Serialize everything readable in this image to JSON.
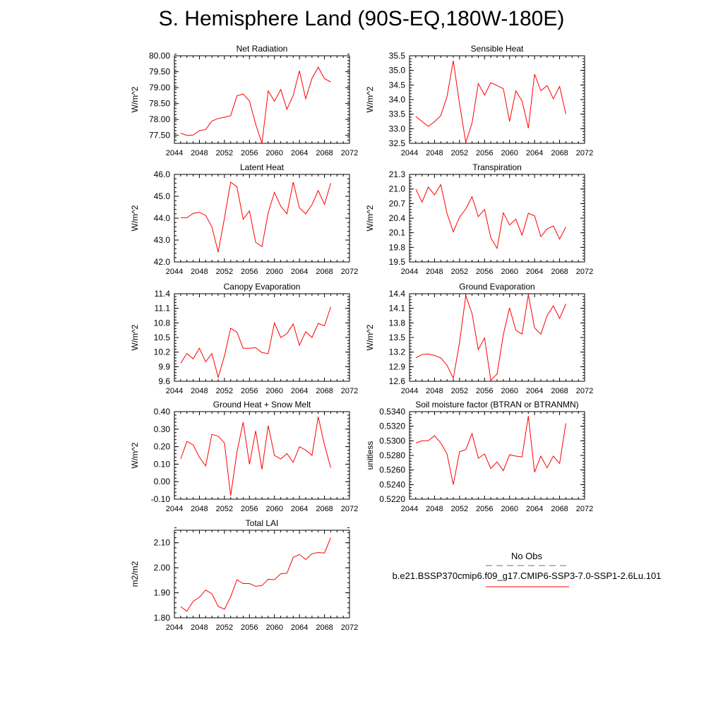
{
  "page": {
    "title": "S. Hemisphere Land (90S-EQ,180W-180E)"
  },
  "legend": {
    "obs_label": "No Obs",
    "case_label": "b.e21.BSSP370cmip6.f09_g17.CMIP6-SSP3-7.0-SSP1-2.6Lu.101",
    "obs_color": "#6b6bb0",
    "case_color": "#ff0000"
  },
  "chart_data": [
    {
      "type": "line",
      "title": "Net Radiation",
      "ylabel": "W/m^2",
      "xlim": [
        2044,
        2072
      ],
      "xticks": [
        "2044",
        "2048",
        "2052",
        "2056",
        "2060",
        "2064",
        "2068",
        "2072"
      ],
      "ylim": [
        77.25,
        80.0
      ],
      "yticks": [
        "77.50",
        "78.00",
        "78.50",
        "79.00",
        "79.50",
        "80.00"
      ],
      "grid": false,
      "series": [
        {
          "color": "#ff0000",
          "x": [
            2045,
            2046,
            2047,
            2048,
            2049,
            2050,
            2051,
            2052,
            2053,
            2054,
            2055,
            2056,
            2057,
            2058,
            2059,
            2060,
            2061,
            2062,
            2063,
            2064,
            2065,
            2066,
            2067,
            2068,
            2069
          ],
          "y": [
            77.57,
            77.5,
            77.51,
            77.65,
            77.68,
            77.95,
            78.03,
            78.07,
            78.12,
            78.74,
            78.8,
            78.58,
            77.85,
            77.25,
            78.9,
            78.57,
            78.94,
            78.32,
            78.76,
            79.53,
            78.65,
            79.29,
            79.64,
            79.28,
            79.18
          ]
        }
      ]
    },
    {
      "type": "line",
      "title": "Sensible Heat",
      "ylabel": "W/m^2",
      "xlim": [
        2044,
        2072
      ],
      "xticks": [
        "2044",
        "2048",
        "2052",
        "2056",
        "2060",
        "2064",
        "2068",
        "2072"
      ],
      "ylim": [
        32.5,
        35.5
      ],
      "yticks": [
        "32.5",
        "33.0",
        "33.5",
        "34.0",
        "34.5",
        "35.0",
        "35.5"
      ],
      "grid": false,
      "series": [
        {
          "color": "#ff0000",
          "x": [
            2045,
            2046,
            2047,
            2048,
            2049,
            2050,
            2051,
            2052,
            2053,
            2054,
            2055,
            2056,
            2057,
            2058,
            2059,
            2060,
            2061,
            2062,
            2063,
            2064,
            2065,
            2066,
            2067,
            2068,
            2069
          ],
          "y": [
            33.42,
            33.25,
            33.08,
            33.24,
            33.45,
            34.1,
            35.33,
            33.85,
            32.53,
            33.2,
            34.55,
            34.15,
            34.58,
            34.48,
            34.37,
            33.25,
            34.3,
            33.95,
            33.02,
            34.87,
            34.3,
            34.48,
            34.03,
            34.45,
            33.5
          ]
        }
      ]
    },
    {
      "type": "line",
      "title": "Latent Heat",
      "ylabel": "W/m^2",
      "xlim": [
        2044,
        2072
      ],
      "xticks": [
        "2044",
        "2048",
        "2052",
        "2056",
        "2060",
        "2064",
        "2068",
        "2072"
      ],
      "ylim": [
        42.0,
        46.0
      ],
      "yticks": [
        "42.0",
        "43.0",
        "44.0",
        "45.0",
        "46.0"
      ],
      "grid": false,
      "series": [
        {
          "color": "#ff0000",
          "x": [
            2045,
            2046,
            2047,
            2048,
            2049,
            2050,
            2051,
            2052,
            2053,
            2054,
            2055,
            2056,
            2057,
            2058,
            2059,
            2060,
            2061,
            2062,
            2063,
            2064,
            2065,
            2066,
            2067,
            2068,
            2069
          ],
          "y": [
            44.02,
            44.02,
            44.22,
            44.27,
            44.13,
            43.6,
            42.45,
            44.0,
            45.65,
            45.43,
            43.95,
            44.33,
            42.9,
            42.7,
            44.25,
            45.18,
            44.55,
            44.2,
            45.65,
            44.47,
            44.2,
            44.62,
            45.26,
            44.63,
            45.6
          ]
        }
      ]
    },
    {
      "type": "line",
      "title": "Transpiration",
      "ylabel": "W/m^2",
      "xlim": [
        2044,
        2072
      ],
      "xticks": [
        "2044",
        "2048",
        "2052",
        "2056",
        "2060",
        "2064",
        "2068",
        "2072"
      ],
      "ylim": [
        19.5,
        21.3
      ],
      "yticks": [
        "19.5",
        "19.8",
        "20.1",
        "20.4",
        "20.7",
        "21.0",
        "21.3"
      ],
      "grid": false,
      "series": [
        {
          "color": "#ff0000",
          "x": [
            2045,
            2046,
            2047,
            2048,
            2049,
            2050,
            2051,
            2052,
            2053,
            2054,
            2055,
            2056,
            2057,
            2058,
            2059,
            2060,
            2061,
            2062,
            2063,
            2064,
            2065,
            2066,
            2067,
            2068,
            2069
          ],
          "y": [
            21.0,
            20.73,
            21.04,
            20.88,
            21.09,
            20.5,
            20.12,
            20.42,
            20.59,
            20.84,
            20.43,
            20.58,
            20.0,
            19.78,
            20.51,
            20.26,
            20.38,
            20.05,
            20.5,
            20.45,
            20.02,
            20.18,
            20.24,
            19.97,
            20.22
          ]
        }
      ]
    },
    {
      "type": "line",
      "title": "Canopy Evaporation",
      "ylabel": "W/m^2",
      "xlim": [
        2044,
        2072
      ],
      "xticks": [
        "2044",
        "2048",
        "2052",
        "2056",
        "2060",
        "2064",
        "2068",
        "2072"
      ],
      "ylim": [
        9.6,
        11.4
      ],
      "yticks": [
        "9.6",
        "9.9",
        "10.2",
        "10.5",
        "10.8",
        "11.1",
        "11.4"
      ],
      "grid": false,
      "series": [
        {
          "color": "#ff0000",
          "x": [
            2045,
            2046,
            2047,
            2048,
            2049,
            2050,
            2051,
            2052,
            2053,
            2054,
            2055,
            2056,
            2057,
            2058,
            2059,
            2060,
            2061,
            2062,
            2063,
            2064,
            2065,
            2066,
            2067,
            2068,
            2069
          ],
          "y": [
            9.97,
            10.17,
            10.06,
            10.28,
            10.0,
            10.17,
            9.68,
            10.12,
            10.69,
            10.61,
            10.28,
            10.28,
            10.29,
            10.19,
            10.17,
            10.8,
            10.5,
            10.58,
            10.78,
            10.34,
            10.62,
            10.5,
            10.79,
            10.74,
            11.13
          ]
        }
      ]
    },
    {
      "type": "line",
      "title": "Ground Evaporation",
      "ylabel": "W/m^2",
      "xlim": [
        2044,
        2072
      ],
      "xticks": [
        "2044",
        "2048",
        "2052",
        "2056",
        "2060",
        "2064",
        "2068",
        "2072"
      ],
      "ylim": [
        12.6,
        14.4
      ],
      "yticks": [
        "12.6",
        "12.9",
        "13.2",
        "13.5",
        "13.8",
        "14.1",
        "14.4"
      ],
      "grid": false,
      "series": [
        {
          "color": "#ff0000",
          "x": [
            2045,
            2046,
            2047,
            2048,
            2049,
            2050,
            2051,
            2052,
            2053,
            2054,
            2055,
            2056,
            2057,
            2058,
            2059,
            2060,
            2061,
            2062,
            2063,
            2064,
            2065,
            2066,
            2067,
            2068,
            2069
          ],
          "y": [
            13.08,
            13.15,
            13.16,
            13.13,
            13.08,
            12.93,
            12.66,
            13.4,
            14.36,
            13.99,
            13.25,
            13.49,
            12.62,
            12.75,
            13.56,
            14.11,
            13.65,
            13.57,
            14.38,
            13.7,
            13.57,
            13.95,
            14.15,
            13.89,
            14.19
          ]
        }
      ]
    },
    {
      "type": "line",
      "title": "Ground Heat + Snow Melt",
      "ylabel": "W/m^2",
      "xlim": [
        2044,
        2072
      ],
      "xticks": [
        "2044",
        "2048",
        "2052",
        "2056",
        "2060",
        "2064",
        "2068",
        "2072"
      ],
      "ylim": [
        -0.1,
        0.4
      ],
      "yticks": [
        "-0.10",
        "0.00",
        "0.10",
        "0.20",
        "0.30",
        "0.40"
      ],
      "grid": false,
      "series": [
        {
          "color": "#ff0000",
          "x": [
            2045,
            2046,
            2047,
            2048,
            2049,
            2050,
            2051,
            2052,
            2053,
            2054,
            2055,
            2056,
            2057,
            2058,
            2059,
            2060,
            2061,
            2062,
            2063,
            2064,
            2065,
            2066,
            2067,
            2068,
            2069
          ],
          "y": [
            0.13,
            0.23,
            0.21,
            0.14,
            0.09,
            0.27,
            0.26,
            0.22,
            -0.08,
            0.17,
            0.34,
            0.1,
            0.29,
            0.07,
            0.32,
            0.15,
            0.13,
            0.16,
            0.11,
            0.2,
            0.18,
            0.15,
            0.37,
            0.21,
            0.08
          ]
        }
      ]
    },
    {
      "type": "line",
      "title": "Soil moisture factor (BTRAN or BTRANMN)",
      "ylabel": "unitless",
      "xlim": [
        2044,
        2072
      ],
      "xticks": [
        "2044",
        "2048",
        "2052",
        "2056",
        "2060",
        "2064",
        "2068",
        "2072"
      ],
      "ylim": [
        0.522,
        0.534
      ],
      "yticks": [
        "0.5220",
        "0.5240",
        "0.5260",
        "0.5280",
        "0.5300",
        "0.5320",
        "0.5340"
      ],
      "grid": false,
      "series": [
        {
          "color": "#ff0000",
          "x": [
            2045,
            2046,
            2047,
            2048,
            2049,
            2050,
            2051,
            2052,
            2053,
            2054,
            2055,
            2056,
            2057,
            2058,
            2059,
            2060,
            2061,
            2062,
            2063,
            2064,
            2065,
            2066,
            2067,
            2068,
            2069
          ],
          "y": [
            0.5297,
            0.53,
            0.53,
            0.5307,
            0.5297,
            0.5282,
            0.524,
            0.5285,
            0.5288,
            0.531,
            0.5276,
            0.5282,
            0.5262,
            0.5271,
            0.5259,
            0.5281,
            0.5279,
            0.5278,
            0.5334,
            0.5257,
            0.5279,
            0.5263,
            0.5279,
            0.5269,
            0.5324
          ]
        }
      ]
    },
    {
      "type": "line",
      "title": "Total LAI",
      "ylabel": "m2/m2",
      "xlim": [
        2044,
        2072
      ],
      "xticks": [
        "2044",
        "2048",
        "2052",
        "2056",
        "2060",
        "2064",
        "2068",
        "2072"
      ],
      "ylim": [
        1.8,
        2.15
      ],
      "yticks": [
        "1.80",
        "1.90",
        "2.00",
        "2.10"
      ],
      "grid": false,
      "series": [
        {
          "color": "#ff0000",
          "x": [
            2045,
            2046,
            2047,
            2048,
            2049,
            2050,
            2051,
            2052,
            2053,
            2054,
            2055,
            2056,
            2057,
            2058,
            2059,
            2060,
            2061,
            2062,
            2063,
            2064,
            2065,
            2066,
            2067,
            2068,
            2069
          ],
          "y": [
            1.845,
            1.826,
            1.866,
            1.882,
            1.911,
            1.896,
            1.846,
            1.834,
            1.884,
            1.952,
            1.937,
            1.937,
            1.926,
            1.929,
            1.954,
            1.952,
            1.976,
            1.978,
            2.042,
            2.053,
            2.033,
            2.056,
            2.061,
            2.059,
            2.12
          ]
        }
      ]
    }
  ]
}
